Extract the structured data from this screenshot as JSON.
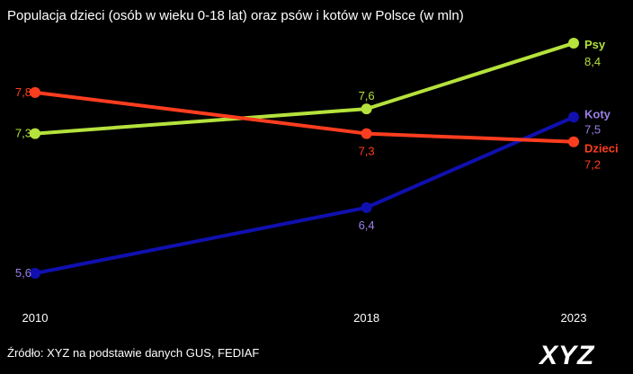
{
  "chart_data": {
    "type": "line",
    "title": "Populacja dzieci (osób w wieku 0-18 lat) oraz psów i kotów w Polsce (w mln)",
    "x": [
      "2010",
      "2018",
      "2023"
    ],
    "x_values": [
      2010,
      2018,
      2023
    ],
    "xlabel": "",
    "ylabel": "",
    "ylim": [
      5.3,
      8.6
    ],
    "grid": false,
    "legend": "series names at line ends",
    "series": [
      {
        "name": "Psy",
        "color": "#b5e23c",
        "values": [
          7.3,
          7.6,
          8.4
        ],
        "labels": [
          "7,3",
          "7,6",
          "8,4"
        ]
      },
      {
        "name": "Dzieci",
        "color": "#ff3d1f",
        "values": [
          7.8,
          7.3,
          7.2
        ],
        "labels": [
          "7,8",
          "7,3",
          "7,2"
        ]
      },
      {
        "name": "Koty",
        "color": "#1010b0",
        "label_color": "#9b7fe8",
        "values": [
          5.6,
          6.4,
          7.5
        ],
        "labels": [
          "5,6",
          "6,4",
          "7,5"
        ]
      }
    ]
  },
  "source": "Źródło: XYZ na podstawie danych GUS, FEDIAF",
  "logo": "XYZ"
}
